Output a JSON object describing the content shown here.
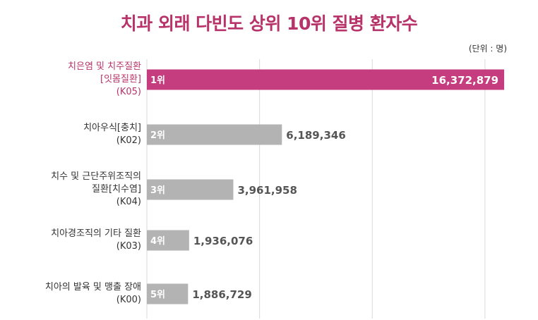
{
  "title": "치과 외래 다빈도 상위 10위 질병 환자수",
  "unit_label": "(단위 : 명)",
  "colors": {
    "highlight": "#c53d7e",
    "bar": "#b3b3b3",
    "title": "#b8336a",
    "grid": "#d9d9d9"
  },
  "chart_data": {
    "type": "bar",
    "orientation": "horizontal",
    "title": "치과 외래 다빈도 상위 10위 질병 환자수",
    "unit": "(단위 : 명)",
    "xlim": [
      0,
      16500000
    ],
    "grid": true,
    "categories": [
      {
        "rank": "1위",
        "lines": [
          "치은염 및 치주질환",
          "[잇몸질환]",
          "(K05)"
        ],
        "value": 16372879,
        "value_label": "16,372,879",
        "highlight": true
      },
      {
        "rank": "2위",
        "lines": [
          "치아우식[충치]",
          "(K02)"
        ],
        "value": 6189346,
        "value_label": "6,189,346",
        "highlight": false
      },
      {
        "rank": "3위",
        "lines": [
          "치수 및 근단주위조직의",
          "질환[치수염]",
          "(K04)"
        ],
        "value": 3961958,
        "value_label": "3,961,958",
        "highlight": false
      },
      {
        "rank": "4위",
        "lines": [
          "치아경조직의 기타 질환",
          "(K03)"
        ],
        "value": 1936076,
        "value_label": "1,936,076",
        "highlight": false
      },
      {
        "rank": "5위",
        "lines": [
          "치아의 발육 및 맹출 장애",
          "(K00)"
        ],
        "value": 1886729,
        "value_label": "1,886,729",
        "highlight": false
      }
    ]
  }
}
